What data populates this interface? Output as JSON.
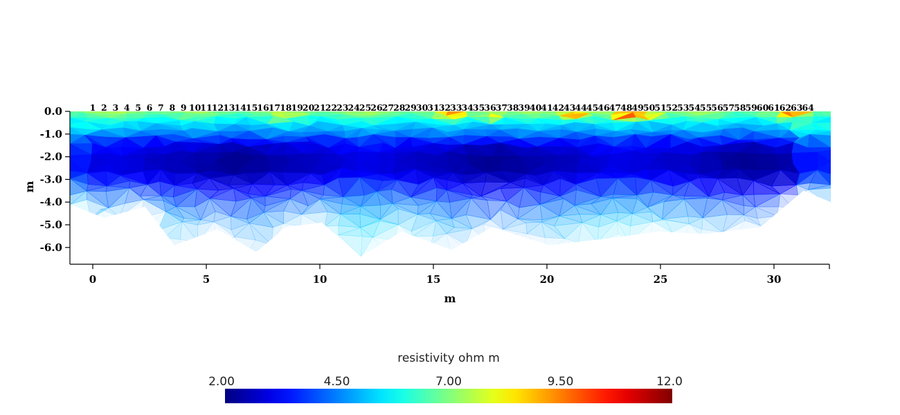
{
  "chart_data": {
    "type": "heatmap",
    "xlabel": "m",
    "ylabel": "m",
    "x_ticks": [
      0,
      5,
      10,
      15,
      20,
      25,
      30
    ],
    "x_tick_labels": [
      "0",
      "5",
      "10",
      "15",
      "20",
      "25",
      "30"
    ],
    "y_ticks": [
      0,
      -1,
      -2,
      -3,
      -4,
      -5,
      -6
    ],
    "y_tick_labels": [
      "0.0",
      "-1.0",
      "-2.0",
      "-3.0",
      "-4.0",
      "-5.0",
      "-6.0"
    ],
    "xlim": [
      -1.0,
      32.5
    ],
    "ylim": [
      -6.7,
      0.0
    ],
    "electrodes": {
      "labels": [
        "1",
        "2",
        "3",
        "4",
        "5",
        "6",
        "7",
        "8",
        "9",
        "10",
        "11",
        "12",
        "13",
        "14",
        "15",
        "16",
        "17",
        "18",
        "19",
        "20",
        "21",
        "22",
        "23",
        "24",
        "25",
        "26",
        "27",
        "28",
        "29",
        "30",
        "31",
        "32",
        "33",
        "34",
        "35",
        "36",
        "37",
        "38",
        "39",
        "40",
        "41",
        "42",
        "43",
        "44",
        "45",
        "46",
        "47",
        "48",
        "49",
        "50",
        "51",
        "52",
        "53",
        "54",
        "55",
        "56",
        "57",
        "58",
        "59",
        "60",
        "61",
        "62",
        "63",
        "64"
      ],
      "start_x": 0,
      "spacing": 0.5
    },
    "colorbar": {
      "title": "resistivity ohm m",
      "min": 2.0,
      "max": 12.0,
      "tick_values": [
        2.0,
        4.5,
        7.0,
        9.5,
        12.0
      ],
      "tick_labels": [
        "2.00",
        "4.50",
        "7.00",
        "9.50",
        "12.0"
      ],
      "colormap": "jet"
    },
    "depth_profile": {
      "depths": [
        0.0,
        -0.5,
        -1.0,
        -1.5,
        -2.0,
        -2.5,
        -3.0,
        -3.5,
        -4.0,
        -5.0
      ],
      "resistivity": [
        7.2,
        5.6,
        4.5,
        3.1,
        2.6,
        2.6,
        3.1,
        3.6,
        4.2,
        5.0
      ]
    },
    "hotspots": [
      {
        "x": 8.5,
        "y": -0.3,
        "value": 8.6
      },
      {
        "x": 15.8,
        "y": -0.15,
        "value": 9.8
      },
      {
        "x": 17.6,
        "y": -0.25,
        "value": 9.4
      },
      {
        "x": 21.2,
        "y": -0.2,
        "value": 10.6
      },
      {
        "x": 23.7,
        "y": -0.15,
        "value": 11.4
      },
      {
        "x": 24.6,
        "y": -0.25,
        "value": 9.0
      },
      {
        "x": 30.8,
        "y": -0.15,
        "value": 10.2
      }
    ],
    "bottom_boundary": [
      [
        -1.0,
        -4.1
      ],
      [
        0.5,
        -4.7
      ],
      [
        2.3,
        -4.2
      ],
      [
        3.6,
        -5.9
      ],
      [
        5.5,
        -5.2
      ],
      [
        7.2,
        -6.2
      ],
      [
        8.5,
        -5.1
      ],
      [
        10.1,
        -4.9
      ],
      [
        11.8,
        -6.4
      ],
      [
        13.6,
        -5.3
      ],
      [
        15.8,
        -6.1
      ],
      [
        17.6,
        -5.1
      ],
      [
        20.1,
        -5.9
      ],
      [
        22.7,
        -5.6
      ],
      [
        24.9,
        -5.3
      ],
      [
        27.0,
        -5.4
      ],
      [
        29.4,
        -5.1
      ],
      [
        31.3,
        -3.5
      ],
      [
        32.5,
        -4.0
      ]
    ],
    "opaque_depth_limit": -2.8
  }
}
